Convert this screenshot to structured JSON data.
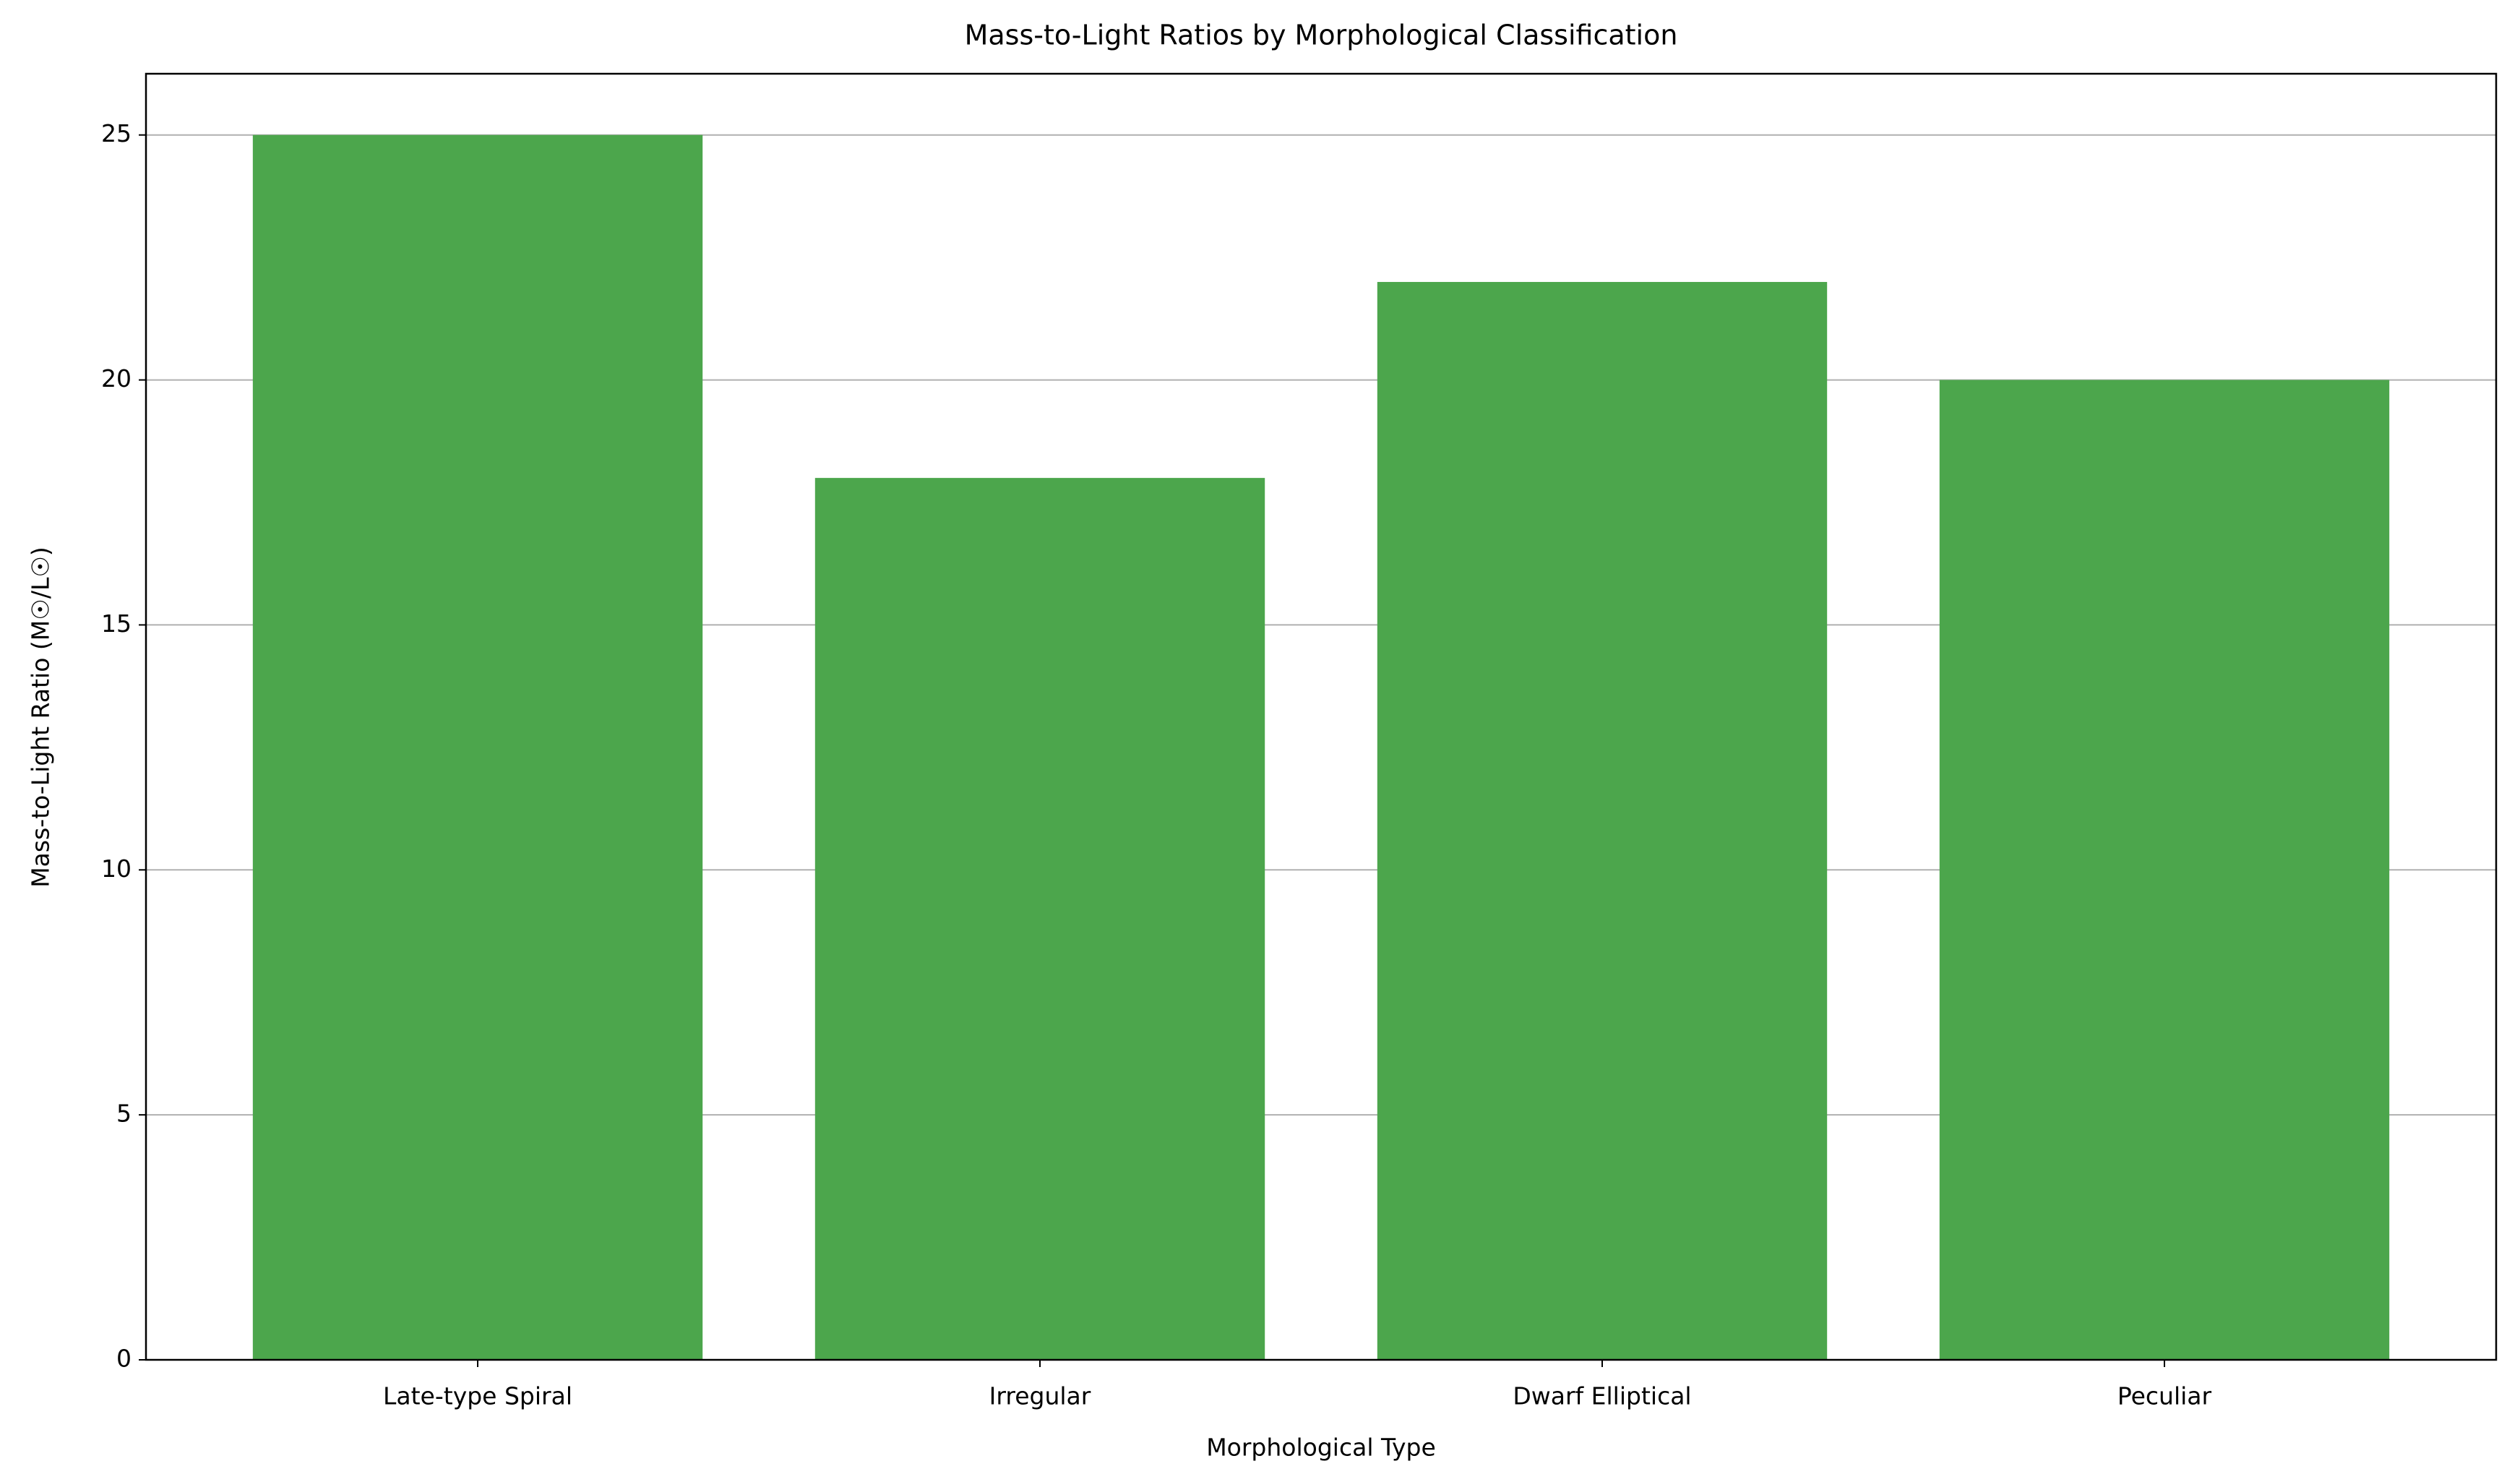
{
  "chart_data": {
    "type": "bar",
    "title": "Mass-to-Light Ratios by Morphological Classification",
    "x_label": "Morphological Type",
    "y_label": "Mass-to-Light Ratio (M☉/L☉)",
    "categories": [
      "Late-type Spiral",
      "Irregular",
      "Dwarf Elliptical",
      "Peculiar"
    ],
    "values": [
      25,
      18,
      22,
      20
    ],
    "color": "#4ca64c",
    "ylim": [
      0,
      26.25
    ],
    "yticks": [
      0,
      5,
      10,
      15,
      20,
      25
    ],
    "grid": true
  }
}
